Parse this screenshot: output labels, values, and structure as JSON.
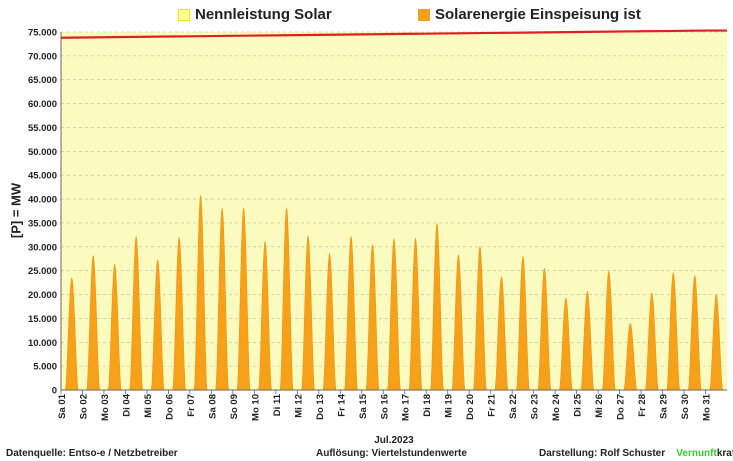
{
  "legend": {
    "item1": {
      "label": "Nennleistung Solar",
      "swatch_fill": "#ffff99",
      "swatch_border": "#e8e800"
    },
    "item2": {
      "label": "Solarenergie Einspeisung ist",
      "swatch_fill": "#f7a11a"
    }
  },
  "footer": {
    "left": "Datenquelle:  Entso-e  / Netzbetreiber",
    "center": "Auflösung: Viertelstundenwerte",
    "right_prefix": "Darstellung:  Rolf Schuster",
    "brand_green": "Vernunft",
    "brand_dark": "kraft"
  },
  "colors": {
    "plot_bg": "#fbfbc0",
    "area": "#f7a11a",
    "capacity_line": "#e02020",
    "grid": "#b8b8a0",
    "brand_green": "#33cc33"
  },
  "chart_data": {
    "type": "area",
    "title": "",
    "xlabel": "Jul.2023",
    "ylabel": "[P] = MW",
    "ylim": [
      0,
      75000
    ],
    "yticks": [
      "0",
      "5.000",
      "10.000",
      "15.000",
      "20.000",
      "25.000",
      "30.000",
      "35.000",
      "40.000",
      "45.000",
      "50.000",
      "55.000",
      "60.000",
      "65.000",
      "70.000",
      "75.000"
    ],
    "grid": true,
    "legend_position": "top",
    "categories": [
      "Sa 01",
      "So 02",
      "Mo 03",
      "Di 04",
      "Mi 05",
      "Do 06",
      "Fr 07",
      "Sa 08",
      "So 09",
      "Mo 10",
      "Di 11",
      "Mi 12",
      "Do 13",
      "Fr 14",
      "Sa 15",
      "So 16",
      "Mo 17",
      "Di 18",
      "Mi 19",
      "Do 20",
      "Fr 21",
      "Sa 22",
      "So 23",
      "Mo 24",
      "Di 25",
      "Mi 26",
      "Do 27",
      "Fr 28",
      "Sa 29",
      "So 30",
      "Mo 31"
    ],
    "series": [
      {
        "name": "Solarenergie Einspeisung ist",
        "values": [
          23500,
          28200,
          26400,
          32200,
          27300,
          32000,
          40800,
          38100,
          38200,
          31100,
          38200,
          32300,
          28600,
          32200,
          30500,
          31700,
          31800,
          34900,
          28300,
          30100,
          23800,
          28000,
          25500,
          19300,
          20700,
          24900,
          14000,
          20400,
          24600,
          24000,
          20000
        ]
      },
      {
        "name": "Nennleistung Solar",
        "values": [
          73800,
          73850,
          73900,
          73950,
          74000,
          74050,
          74100,
          74150,
          74200,
          74250,
          74300,
          74350,
          74400,
          74450,
          74500,
          74550,
          74600,
          74650,
          74700,
          74750,
          74800,
          74850,
          74900,
          74950,
          75000,
          75050,
          75100,
          75150,
          75200,
          75250,
          75300
        ]
      }
    ]
  }
}
